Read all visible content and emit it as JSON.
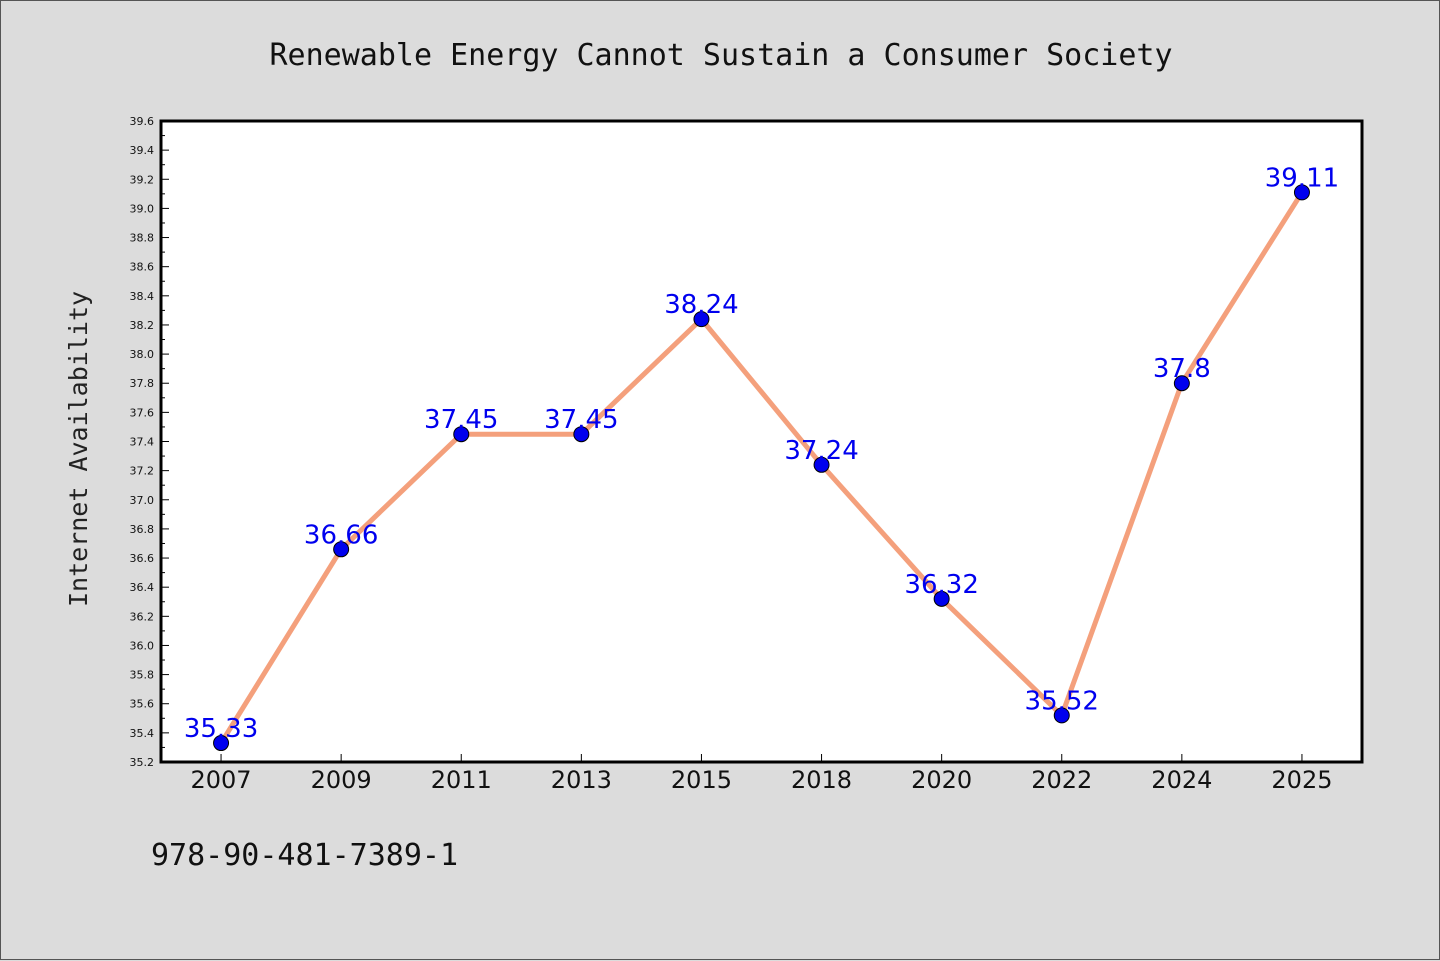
{
  "chart_data": {
    "type": "line",
    "title": "Renewable Energy Cannot Sustain a Consumer Society",
    "xlabel": "",
    "ylabel": "Internet Availability",
    "categories": [
      "2007",
      "2009",
      "2011",
      "2013",
      "2015",
      "2018",
      "2020",
      "2022",
      "2024",
      "2025"
    ],
    "series": [
      {
        "values": [
          35.33,
          36.66,
          37.45,
          37.45,
          38.24,
          37.24,
          36.32,
          35.52,
          37.8,
          39.11
        ],
        "labels": [
          "35.33",
          "36.66",
          "37.45",
          "37.45",
          "38.24",
          "37.24",
          "36.32",
          "35.52",
          "37.8",
          "39.11"
        ],
        "line_color": "#f4a07c",
        "marker_color": "#0000ee"
      }
    ],
    "ylim": [
      35.2,
      39.6
    ],
    "yticks": [
      "35.2",
      "35.4",
      "35.6",
      "35.8",
      "36.0",
      "36.2",
      "36.4",
      "36.6",
      "36.8",
      "37.0",
      "37.2",
      "37.4",
      "37.6",
      "37.8",
      "38.0",
      "38.2",
      "38.4",
      "38.6",
      "38.8",
      "39.0",
      "39.2",
      "39.4",
      "39.6"
    ],
    "grid": false,
    "legend": "none"
  },
  "footer": {
    "isbn": "978-90-481-7389-1"
  },
  "colors": {
    "background": "#dcdcdc",
    "plot_background": "#ffffff",
    "line": "#f4a07c",
    "marker": "#0000ee",
    "label": "#0000ee"
  }
}
